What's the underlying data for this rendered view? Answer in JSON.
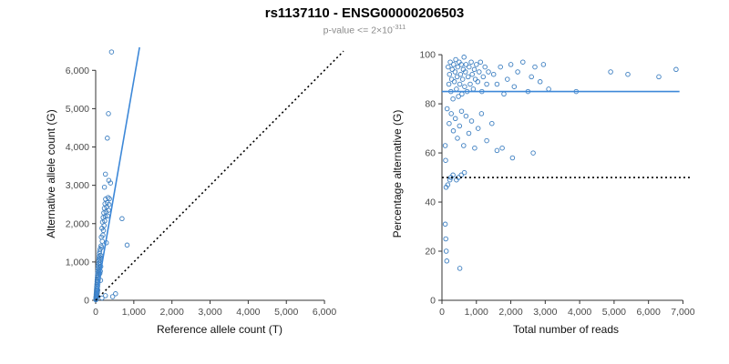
{
  "title": "rs1137110 - ENSG00000206503",
  "subtitle": {
    "text": "p-value <= 2×10",
    "exponent": "-311"
  },
  "colors": {
    "point": "#3d7fc1",
    "line": "#3d88d8",
    "dotted": "#000000"
  },
  "chart_data": [
    {
      "type": "scatter",
      "title": "",
      "xlabel": "Reference allele count (T)",
      "ylabel": "Alternative allele count (G)",
      "xlim": [
        0,
        6500
      ],
      "ylim": [
        0,
        6600
      ],
      "xscale_max": 6500,
      "yscale_max": 6600,
      "grid": false,
      "xticks": {
        "values": [
          0,
          1000,
          2000,
          3000,
          4000,
          5000,
          6000
        ],
        "labels": [
          "0",
          "1,000",
          "2,000",
          "3,000",
          "4,000",
          "5,000",
          "6,000"
        ]
      },
      "yticks": {
        "values": [
          0,
          1000,
          2000,
          3000,
          4000,
          5000,
          6000
        ],
        "labels": [
          "0",
          "1,000",
          "2,000",
          "3,000",
          "4,000",
          "5,000",
          "6,000"
        ]
      },
      "point_color": "#3d7fc1",
      "lines": [
        {
          "name": "regression-line",
          "style": "solid",
          "color": "#3d88d8",
          "x1": 0,
          "y1": 0,
          "x2": 1150,
          "y2": 6600
        },
        {
          "name": "identity-line",
          "style": "dotted",
          "color": "#000000",
          "x1": 0,
          "y1": 0,
          "x2": 6500,
          "y2": 6500
        }
      ],
      "points": [
        [
          5,
          15
        ],
        [
          6,
          40
        ],
        [
          8,
          70
        ],
        [
          9,
          25
        ],
        [
          10,
          110
        ],
        [
          12,
          60
        ],
        [
          13,
          160
        ],
        [
          15,
          90
        ],
        [
          16,
          210
        ],
        [
          18,
          130
        ],
        [
          20,
          260
        ],
        [
          21,
          50
        ],
        [
          23,
          310
        ],
        [
          25,
          180
        ],
        [
          27,
          360
        ],
        [
          29,
          90
        ],
        [
          31,
          420
        ],
        [
          33,
          240
        ],
        [
          35,
          480
        ],
        [
          37,
          140
        ],
        [
          39,
          530
        ],
        [
          41,
          300
        ],
        [
          43,
          590
        ],
        [
          45,
          200
        ],
        [
          47,
          650
        ],
        [
          50,
          360
        ],
        [
          52,
          710
        ],
        [
          55,
          260
        ],
        [
          58,
          770
        ],
        [
          60,
          430
        ],
        [
          62,
          830
        ],
        [
          65,
          500
        ],
        [
          68,
          900
        ],
        [
          71,
          560
        ],
        [
          74,
          960
        ],
        [
          77,
          620
        ],
        [
          80,
          1030
        ],
        [
          83,
          690
        ],
        [
          86,
          1090
        ],
        [
          89,
          750
        ],
        [
          92,
          1150
        ],
        [
          95,
          810
        ],
        [
          98,
          1220
        ],
        [
          101,
          870
        ],
        [
          104,
          1280
        ],
        [
          107,
          930
        ],
        [
          110,
          700
        ],
        [
          113,
          990
        ],
        [
          116,
          1340
        ],
        [
          119,
          1050
        ],
        [
          122,
          760
        ],
        [
          125,
          1110
        ],
        [
          128,
          520
        ],
        [
          131,
          1170
        ],
        [
          134,
          880
        ],
        [
          140,
          1420
        ],
        [
          148,
          1650
        ],
        [
          156,
          1380
        ],
        [
          164,
          1880
        ],
        [
          172,
          1540
        ],
        [
          180,
          2040
        ],
        [
          188,
          1700
        ],
        [
          196,
          2160
        ],
        [
          204,
          1820
        ],
        [
          212,
          2280
        ],
        [
          220,
          1950
        ],
        [
          228,
          2400
        ],
        [
          236,
          2070
        ],
        [
          244,
          2520
        ],
        [
          252,
          2190
        ],
        [
          260,
          2640
        ],
        [
          270,
          2310
        ],
        [
          280,
          1500
        ],
        [
          290,
          2430
        ],
        [
          300,
          2550
        ],
        [
          310,
          2200
        ],
        [
          325,
          2680
        ],
        [
          335,
          2350
        ],
        [
          350,
          2500
        ],
        [
          360,
          2650
        ],
        [
          415,
          6480
        ],
        [
          335,
          4870
        ],
        [
          305,
          4230
        ],
        [
          255,
          3290
        ],
        [
          345,
          3130
        ],
        [
          390,
          3060
        ],
        [
          230,
          2950
        ],
        [
          690,
          2130
        ],
        [
          825,
          1440
        ],
        [
          520,
          170
        ],
        [
          255,
          120
        ],
        [
          165,
          60
        ],
        [
          445,
          95
        ]
      ]
    },
    {
      "type": "scatter",
      "title": "",
      "xlabel": "Total number of reads",
      "ylabel": "Percentage alternative (G)",
      "xlim": [
        0,
        7200
      ],
      "ylim": [
        0,
        103
      ],
      "xscale_max": 7200,
      "yscale_max": 103,
      "grid": false,
      "xticks": {
        "values": [
          0,
          1000,
          2000,
          3000,
          4000,
          5000,
          6000,
          7000
        ],
        "labels": [
          "0",
          "1,000",
          "2,000",
          "3,000",
          "4,000",
          "5,000",
          "6,000",
          "7,000"
        ]
      },
      "yticks": {
        "values": [
          0,
          20,
          40,
          60,
          80,
          100
        ],
        "labels": [
          "0",
          "20",
          "40",
          "60",
          "80",
          "100"
        ]
      },
      "point_color": "#3d7fc1",
      "lines": [
        {
          "name": "mean-percentage-line",
          "style": "solid",
          "color": "#3d88d8",
          "x1": 0,
          "y1": 85,
          "x2": 6900,
          "y2": 85
        },
        {
          "name": "fifty-percent-line",
          "style": "dotted",
          "color": "#000000",
          "x1": 0,
          "y1": 50,
          "x2": 7200,
          "y2": 50
        }
      ],
      "points": [
        [
          180,
          95
        ],
        [
          200,
          88
        ],
        [
          220,
          92
        ],
        [
          240,
          97
        ],
        [
          260,
          85
        ],
        [
          280,
          90
        ],
        [
          300,
          94
        ],
        [
          320,
          82
        ],
        [
          340,
          96
        ],
        [
          360,
          89
        ],
        [
          380,
          93
        ],
        [
          400,
          98
        ],
        [
          420,
          86
        ],
        [
          440,
          91
        ],
        [
          460,
          95
        ],
        [
          480,
          83
        ],
        [
          500,
          97
        ],
        [
          520,
          88
        ],
        [
          540,
          92
        ],
        [
          560,
          96
        ],
        [
          580,
          84
        ],
        [
          600,
          90
        ],
        [
          620,
          94
        ],
        [
          640,
          99
        ],
        [
          660,
          87
        ],
        [
          680,
          93
        ],
        [
          700,
          96
        ],
        [
          730,
          85
        ],
        [
          760,
          91
        ],
        [
          790,
          95
        ],
        [
          820,
          88
        ],
        [
          850,
          97
        ],
        [
          880,
          92
        ],
        [
          910,
          86
        ],
        [
          940,
          94
        ],
        [
          970,
          90
        ],
        [
          1000,
          96
        ],
        [
          1040,
          89
        ],
        [
          1080,
          93
        ],
        [
          1120,
          97
        ],
        [
          1160,
          85
        ],
        [
          1200,
          91
        ],
        [
          1250,
          95
        ],
        [
          1300,
          88
        ],
        [
          1350,
          93
        ],
        [
          150,
          78
        ],
        [
          210,
          72
        ],
        [
          270,
          76
        ],
        [
          330,
          69
        ],
        [
          390,
          74
        ],
        [
          450,
          66
        ],
        [
          510,
          71
        ],
        [
          570,
          77
        ],
        [
          630,
          63
        ],
        [
          700,
          75
        ],
        [
          780,
          68
        ],
        [
          860,
          73
        ],
        [
          950,
          62
        ],
        [
          1050,
          70
        ],
        [
          1150,
          76
        ],
        [
          1300,
          65
        ],
        [
          1450,
          72
        ],
        [
          1600,
          61
        ],
        [
          1500,
          92
        ],
        [
          1600,
          88
        ],
        [
          1700,
          95
        ],
        [
          1800,
          84
        ],
        [
          1900,
          90
        ],
        [
          2000,
          96
        ],
        [
          2100,
          87
        ],
        [
          2200,
          93
        ],
        [
          2350,
          97
        ],
        [
          2500,
          85
        ],
        [
          2600,
          91
        ],
        [
          2700,
          95
        ],
        [
          2850,
          89
        ],
        [
          2950,
          96
        ],
        [
          3100,
          86
        ],
        [
          1750,
          62
        ],
        [
          2050,
          58
        ],
        [
          2650,
          60
        ],
        [
          3900,
          85
        ],
        [
          4900,
          93
        ],
        [
          5400,
          92
        ],
        [
          6300,
          91
        ],
        [
          6800,
          94
        ],
        [
          230,
          49
        ],
        [
          320,
          51
        ],
        [
          480,
          50
        ],
        [
          650,
          52
        ],
        [
          260,
          50
        ],
        [
          420,
          49
        ],
        [
          560,
          51
        ],
        [
          95,
          63
        ],
        [
          105,
          57
        ],
        [
          120,
          46
        ],
        [
          170,
          47
        ],
        [
          95,
          31
        ],
        [
          110,
          25
        ],
        [
          125,
          20
        ],
        [
          140,
          16
        ],
        [
          520,
          13
        ]
      ]
    }
  ]
}
